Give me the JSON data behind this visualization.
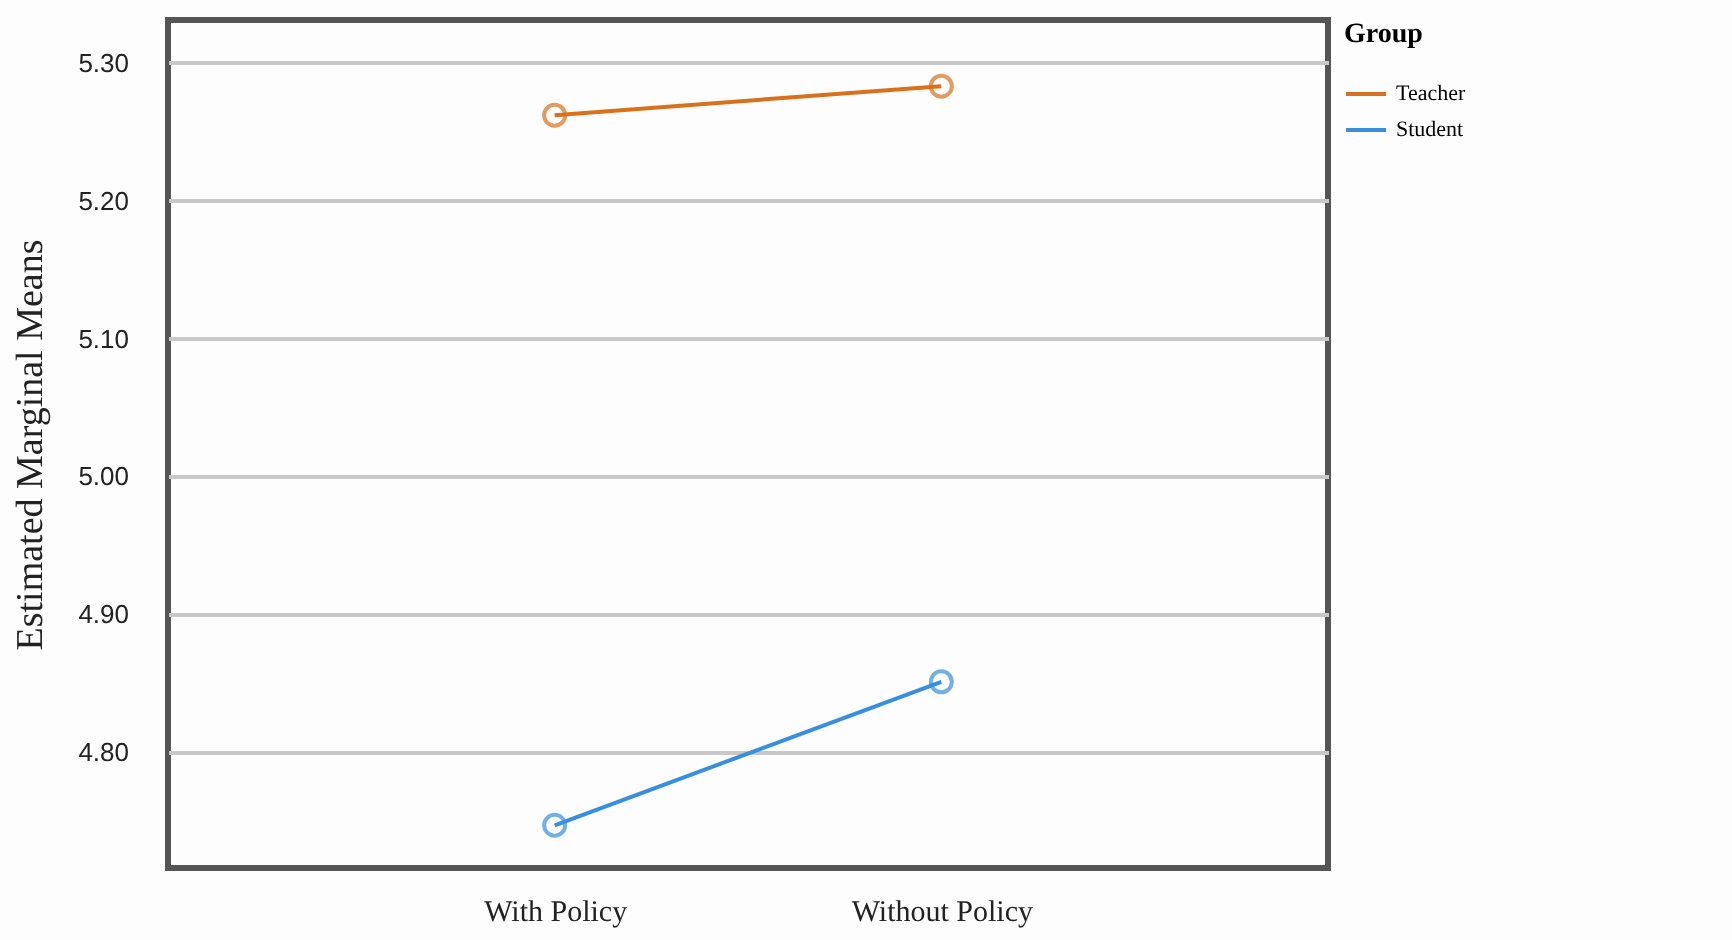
{
  "chart_data": {
    "type": "line",
    "ylabel": "Estimated Marginal Means",
    "legend_title": "Group",
    "categories": [
      "With Policy",
      "Without Policy"
    ],
    "series": [
      {
        "name": "Teacher",
        "color": "#d9711c",
        "values": [
          5.262,
          5.283
        ]
      },
      {
        "name": "Student",
        "color": "#3a8fdc",
        "values": [
          4.747,
          4.851
        ]
      }
    ],
    "ylim": [
      4.716,
      5.331
    ],
    "yticks": [
      {
        "value": 4.8,
        "label": "4.80"
      },
      {
        "value": 4.9,
        "label": "4.90"
      },
      {
        "value": 5.0,
        "label": "5.00"
      },
      {
        "value": 5.1,
        "label": "5.10"
      },
      {
        "value": 5.2,
        "label": "5.20"
      },
      {
        "value": 5.3,
        "label": "5.30"
      }
    ],
    "grid": "y",
    "legend": "top right",
    "marker": "circle",
    "line_style": "solid"
  }
}
